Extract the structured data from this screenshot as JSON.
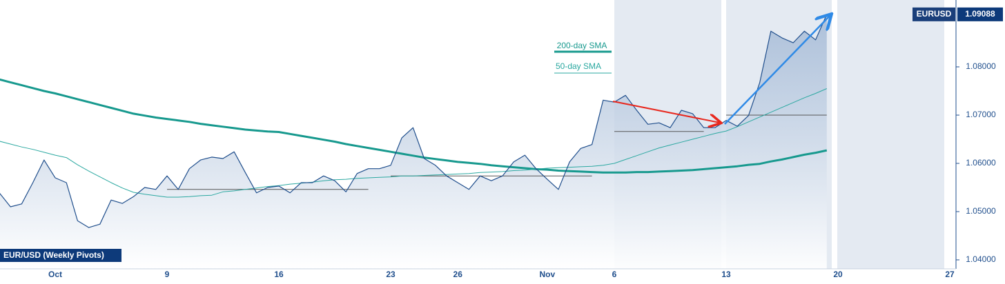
{
  "chart_data": {
    "type": "line",
    "label_box": "EUR/USD (Weekly Pivots)",
    "categories": [
      null,
      null,
      null,
      null,
      null,
      "Oct",
      null,
      null,
      null,
      null,
      null,
      null,
      null,
      null,
      null,
      "9",
      null,
      null,
      null,
      null,
      null,
      null,
      null,
      null,
      null,
      "16",
      null,
      null,
      null,
      null,
      null,
      null,
      null,
      null,
      null,
      "23",
      null,
      null,
      null,
      null,
      null,
      "26",
      null,
      null,
      null,
      null,
      null,
      null,
      null,
      "Nov",
      null,
      null,
      null,
      null,
      null,
      "6",
      null,
      null,
      null,
      null,
      null,
      null,
      null,
      null,
      null,
      "13",
      null,
      null,
      null,
      null,
      null,
      null,
      null,
      null,
      null,
      "20",
      null,
      null,
      null,
      null,
      null,
      null,
      null,
      null,
      null,
      "27"
    ],
    "series": [
      {
        "name": "EURUSD",
        "color": "#1f4e8c",
        "width": 1.2,
        "fill": true,
        "values": [
          1.0539,
          1.051,
          1.0516,
          1.056,
          1.0607,
          1.057,
          1.056,
          1.0481,
          1.0467,
          1.0474,
          1.0524,
          1.0517,
          1.0531,
          1.055,
          1.0546,
          1.0574,
          1.0546,
          1.0589,
          1.0607,
          1.0613,
          1.061,
          1.0624,
          1.0581,
          1.0539,
          1.055,
          1.0553,
          1.0539,
          1.056,
          1.056,
          1.0574,
          1.0564,
          1.0541,
          1.0579,
          1.0589,
          1.0589,
          1.0596,
          1.0653,
          1.0674,
          1.061,
          1.0596,
          1.0574,
          1.056,
          1.0546,
          1.0574,
          1.0564,
          1.0574,
          1.0603,
          1.0617,
          1.0589,
          1.0567,
          1.0546,
          1.0603,
          1.0631,
          1.0639,
          1.0731,
          1.0727,
          1.0741,
          1.071,
          1.0681,
          1.0684,
          1.0674,
          1.071,
          1.0703,
          1.0674,
          1.0674,
          1.0689,
          1.0677,
          1.0699,
          1.0767,
          1.0874,
          1.086,
          1.085,
          1.0874,
          1.0856,
          1.09088,
          null,
          null,
          null,
          null,
          null,
          null,
          null,
          null,
          null,
          null,
          null
        ]
      },
      {
        "name": "200-day SMA",
        "color": "#17998e",
        "width": 3,
        "values": [
          1.0774,
          1.0768,
          1.0762,
          1.0756,
          1.075,
          1.0745,
          1.0739,
          1.0733,
          1.0727,
          1.0721,
          1.0715,
          1.0709,
          1.0703,
          1.0699,
          1.0695,
          1.0692,
          1.0689,
          1.0686,
          1.0682,
          1.0679,
          1.0676,
          1.0673,
          1.067,
          1.0668,
          1.0666,
          1.0665,
          1.0661,
          1.0657,
          1.0653,
          1.0649,
          1.0645,
          1.064,
          1.0636,
          1.0632,
          1.0628,
          1.0624,
          1.062,
          1.0616,
          1.0612,
          1.0609,
          1.0606,
          1.0603,
          1.0601,
          1.0599,
          1.0596,
          1.0594,
          1.0592,
          1.059,
          1.0588,
          1.0587,
          1.0585,
          1.0584,
          1.0583,
          1.0582,
          1.0581,
          1.0581,
          1.0581,
          1.0582,
          1.0582,
          1.0583,
          1.0584,
          1.0585,
          1.0586,
          1.0588,
          1.059,
          1.0592,
          1.0594,
          1.0597,
          1.0599,
          1.0604,
          1.0608,
          1.0613,
          1.0618,
          1.0622,
          1.0627,
          null,
          null,
          null,
          null,
          null,
          null,
          null,
          null,
          null,
          null,
          null
        ]
      },
      {
        "name": "50-day SMA",
        "color": "#2aa8a0",
        "width": 1,
        "values": [
          1.0646,
          1.064,
          1.0634,
          1.0629,
          1.0623,
          1.0617,
          1.0612,
          1.0597,
          1.0584,
          1.0572,
          1.056,
          1.0549,
          1.054,
          1.0536,
          1.0533,
          1.053,
          1.053,
          1.0531,
          1.0533,
          1.0534,
          1.0541,
          1.0543,
          1.0546,
          1.0549,
          1.0552,
          1.0554,
          1.0557,
          1.0559,
          1.0561,
          1.0564,
          1.0566,
          1.0567,
          1.0569,
          1.057,
          1.0571,
          1.0572,
          1.0574,
          1.0574,
          1.0575,
          1.0576,
          1.0577,
          1.0578,
          1.0579,
          1.0581,
          1.0582,
          1.0583,
          1.0585,
          1.0586,
          1.0588,
          1.059,
          1.0591,
          1.0592,
          1.0593,
          1.0594,
          1.0596,
          1.06,
          1.0608,
          1.0616,
          1.0624,
          1.0632,
          1.0638,
          1.0644,
          1.065,
          1.0656,
          1.0662,
          1.0667,
          1.0676,
          1.0686,
          1.0696,
          1.0706,
          1.0716,
          1.0726,
          1.0736,
          1.0745,
          1.0755,
          null,
          null,
          null,
          null,
          null,
          null,
          null,
          null,
          null,
          null,
          null
        ]
      }
    ],
    "pivots": {
      "color": "#555555",
      "values": [
        null,
        null,
        null,
        null,
        null,
        null,
        null,
        null,
        null,
        null,
        null,
        null,
        null,
        null,
        null,
        1.0546,
        1.0546,
        1.0546,
        1.0546,
        1.0546,
        1.0546,
        1.0546,
        1.0546,
        1.0546,
        1.0546,
        1.0546,
        1.0546,
        1.0546,
        1.0546,
        1.0546,
        1.0546,
        1.0546,
        1.0546,
        1.0546,
        null,
        1.0574,
        1.0574,
        1.0574,
        1.0574,
        1.0574,
        1.0574,
        1.0574,
        1.0574,
        1.0574,
        1.0574,
        1.0574,
        1.0574,
        1.0574,
        1.0574,
        1.0574,
        1.0574,
        1.0574,
        1.0574,
        1.0574,
        null,
        1.0666,
        1.0666,
        1.0666,
        1.0666,
        1.0666,
        1.0666,
        1.0666,
        1.0666,
        1.0666,
        null,
        1.07,
        1.07,
        1.07,
        1.07,
        1.07,
        1.07,
        1.07,
        1.07,
        1.07,
        1.07,
        null,
        null,
        null,
        null,
        null,
        null,
        null,
        null,
        null,
        null,
        null
      ]
    },
    "ylim": [
      1.03814,
      1.09386
    ],
    "yticks": [
      {
        "value": 1.04,
        "label": "1.04000"
      },
      {
        "value": 1.05,
        "label": "1.05000"
      },
      {
        "value": 1.06,
        "label": "1.06000"
      },
      {
        "value": 1.07,
        "label": "1.07000"
      },
      {
        "value": 1.08,
        "label": "1.08000"
      }
    ],
    "grid": false
  }
}
